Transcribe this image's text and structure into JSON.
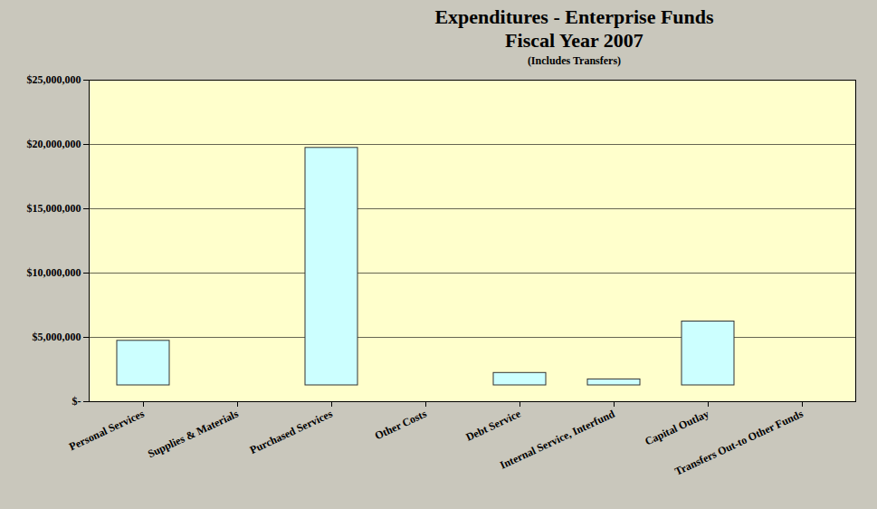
{
  "chart_data": {
    "type": "bar",
    "title": "Expenditures - Enterprise Funds\nFiscal Year 2007",
    "subtitle": "(Includes Transfers)",
    "categories": [
      "Personal Services",
      "Supplies & Materials",
      "Purchased Services",
      "Other Costs",
      "Debt Service",
      "Internal Service, Interfund",
      "Capital Outlay",
      "Transfers Out-to Other Funds"
    ],
    "values": [
      6000000,
      800000,
      21000000,
      100000,
      3500000,
      3000000,
      7500000,
      50000
    ],
    "color": "#ccffff",
    "ylim": [
      0,
      25000000
    ],
    "yticks": [
      {
        "value": 0,
        "label": "$-"
      },
      {
        "value": 5000000,
        "label": "$5,000,000"
      },
      {
        "value": 10000000,
        "label": "$10,000,000"
      },
      {
        "value": 15000000,
        "label": "$15,000,000"
      },
      {
        "value": 20000000,
        "label": "$20,000,000"
      },
      {
        "value": 25000000,
        "label": "$25,000,000"
      }
    ],
    "grid": true
  }
}
